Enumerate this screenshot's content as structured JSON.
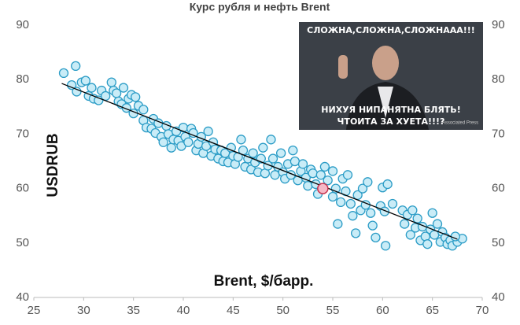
{
  "chart_data": {
    "type": "scatter",
    "title": "Курс рубля и нефть Brent",
    "x_label": "Brent, $/барр.",
    "y_label": "USDRUB",
    "xlim": [
      25,
      70
    ],
    "xticks": [
      25,
      30,
      35,
      40,
      45,
      50,
      55,
      60,
      65,
      70
    ],
    "ylim": [
      40,
      90
    ],
    "yticks": [
      40,
      50,
      60,
      70,
      80,
      90
    ],
    "grid": false,
    "series": [
      {
        "color": "#2b9cc6",
        "x": [
          28,
          28.8,
          29.2,
          29.3,
          29.8,
          30.2,
          30.5,
          30.8,
          31,
          31.5,
          31.8,
          32.2,
          32.8,
          33,
          33.3,
          33.5,
          33.8,
          34,
          34.3,
          34.5,
          34.8,
          35.2,
          35,
          35.5,
          36,
          36,
          36.3,
          36.8,
          37,
          37.2,
          37.5,
          37.8,
          38,
          38.3,
          38.5,
          38.8,
          39,
          39.3,
          39.5,
          39.8,
          40,
          40.2,
          40.5,
          40.8,
          41,
          41.3,
          41.5,
          41.8,
          42,
          42.3,
          42.5,
          42.8,
          43,
          43.2,
          43.5,
          43.8,
          44,
          44.2,
          44.5,
          44.8,
          45,
          45.2,
          45.5,
          45.8,
          46,
          46.2,
          46.5,
          46.8,
          47,
          47.2,
          47.5,
          47.8,
          48,
          48.2,
          48.5,
          48.8,
          49,
          49.2,
          49.5,
          49.8,
          50,
          50.2,
          50.5,
          50.8,
          51,
          51.2,
          51.5,
          51.8,
          52,
          52.3,
          52.5,
          52.8,
          53,
          53.3,
          53.5,
          53.8,
          54.2,
          54.5,
          55,
          55,
          55.3,
          55.5,
          55.8,
          56,
          56.3,
          56.5,
          56.8,
          57,
          57.3,
          57.5,
          57.8,
          58,
          58.3,
          58.5,
          58.8,
          59,
          59.3,
          59.8,
          60,
          60.2,
          60.5,
          60.3,
          61,
          62,
          62.2,
          62.5,
          62.8,
          63,
          63.3,
          63.5,
          63.8,
          64,
          64.3,
          64.5,
          64.8,
          65,
          65.2,
          65.5,
          65.8,
          66,
          66.3,
          66.5,
          66.8,
          67,
          67.5,
          68,
          67.3
        ],
        "y": [
          81.2,
          79,
          82.5,
          77.8,
          79.5,
          79.8,
          77,
          78.5,
          76.5,
          76.2,
          78,
          77,
          79.5,
          78,
          77.5,
          76,
          75.5,
          78.5,
          74.8,
          76.5,
          77.2,
          76.8,
          73.8,
          75.2,
          74.5,
          72.5,
          71.2,
          71,
          72.8,
          70.2,
          72,
          69.5,
          68.5,
          71.5,
          70,
          67.5,
          69,
          70.5,
          68.8,
          67.8,
          71.2,
          69.5,
          68.5,
          71,
          70.2,
          67,
          68.2,
          69.5,
          66.5,
          67.8,
          70.5,
          66,
          68.5,
          67.2,
          65.5,
          67,
          65,
          66.5,
          64.8,
          67.5,
          66,
          64.5,
          65.8,
          69,
          67,
          64,
          65.5,
          63.5,
          66.5,
          64.8,
          63,
          65.5,
          67.5,
          62.8,
          64.2,
          69,
          65.5,
          62.5,
          64,
          66.5,
          63,
          61.8,
          64.5,
          62.5,
          67,
          65,
          61.5,
          63.2,
          64.5,
          62,
          60.5,
          63.5,
          62.8,
          60.8,
          59,
          62.5,
          64,
          61.5,
          63.2,
          58.5,
          60,
          53.5,
          57.5,
          61.8,
          59.5,
          62.5,
          57.2,
          55,
          51.8,
          58.8,
          56,
          60,
          57,
          61.2,
          55.5,
          53.2,
          51,
          56.8,
          60.2,
          55.8,
          60.8,
          49.5,
          57.2,
          56,
          53.5,
          55.2,
          51.5,
          56,
          52.8,
          54.5,
          50.5,
          53,
          51.2,
          49.8,
          52.5,
          55.5,
          51.5,
          53.5,
          50.2,
          52,
          51,
          49.8,
          50.5,
          49.5,
          50.2,
          50.8,
          51.2
        ]
      }
    ],
    "highlight": {
      "x": 54,
      "y": 60,
      "color": "#c8324e"
    },
    "trendline": {
      "x": [
        27.8,
        67.5
      ],
      "y": [
        79.3,
        50.7
      ],
      "color": "#000000"
    },
    "annotations": [
      "СЛОЖНА,СЛОЖНА,СЛОЖНААА!!!",
      "НИХУЯ НИПАНЯТНА БЛЯТЬ!",
      "ЧТОИТА ЗА ХУЕТА!!!?",
      "Associated Press"
    ]
  }
}
